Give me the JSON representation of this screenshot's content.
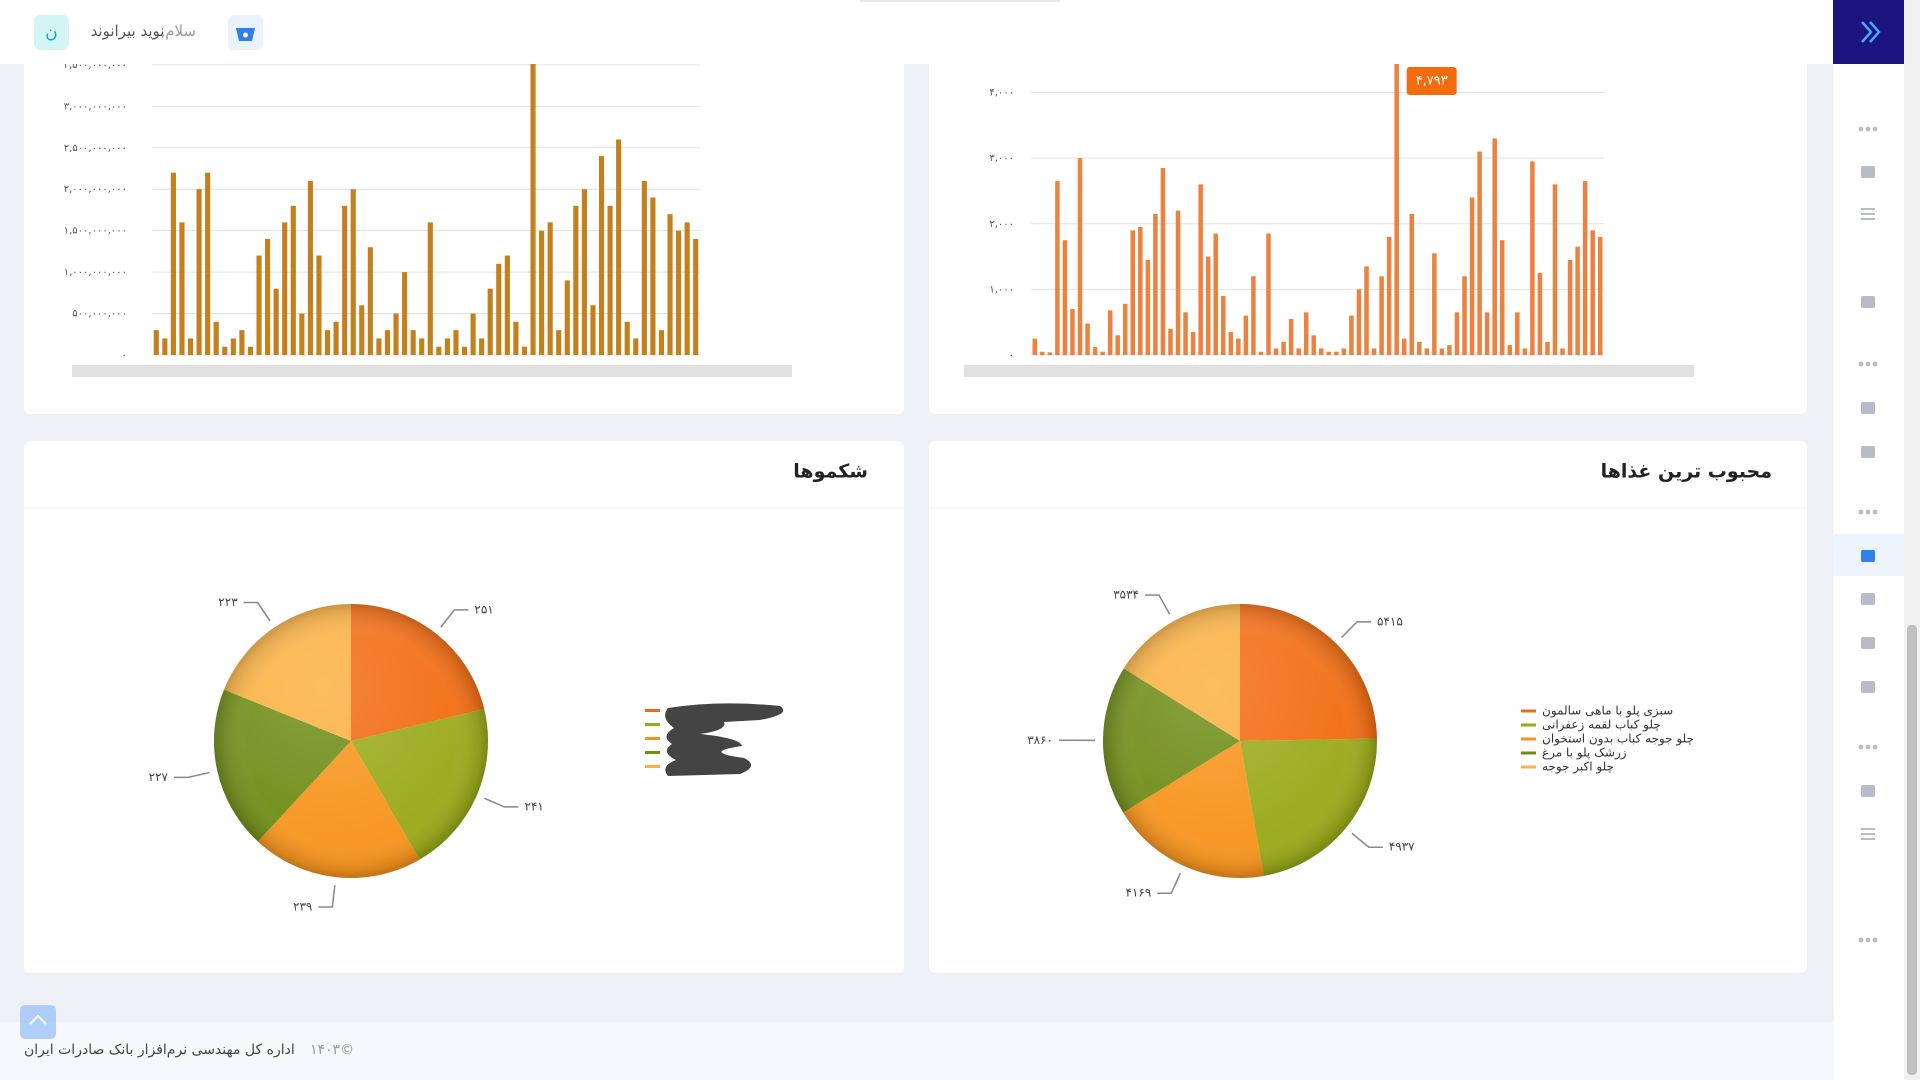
{
  "header": {
    "greeting": "سلام,",
    "user": "نوید بیرانوند",
    "avatar": "ن"
  },
  "chart_data": [
    {
      "type": "bar",
      "color": "#c4801c",
      "values": [
        300000000,
        200000000,
        2200000000,
        1600000000,
        200000000,
        2000000000,
        2200000000,
        400000000,
        100000000,
        200000000,
        300000000,
        100000000,
        1200000000,
        1400000000,
        800000000,
        1600000000,
        1800000000,
        500000000,
        2100000000,
        1200000000,
        300000000,
        400000000,
        1800000000,
        2000000000,
        600000000,
        1300000000,
        200000000,
        300000000,
        500000000,
        1000000000,
        300000000,
        200000000,
        1600000000,
        100000000,
        200000000,
        300000000,
        100000000,
        500000000,
        200000000,
        800000000,
        1100000000,
        1200000000,
        400000000,
        100000000,
        3700000000,
        1500000000,
        1600000000,
        300000000,
        900000000,
        1800000000,
        2000000000,
        600000000,
        2400000000,
        1800000000,
        2600000000,
        400000000,
        200000000,
        2100000000,
        1900000000,
        300000000,
        1700000000,
        1500000000,
        1600000000,
        1400000000
      ],
      "ylim": [
        0,
        3800000000
      ],
      "yticks": [
        {
          "value": 0,
          "label": "۰"
        },
        {
          "value": 500000000,
          "label": "۵۰۰,۰۰۰,۰۰۰"
        },
        {
          "value": 1000000000,
          "label": "۱,۰۰۰,۰۰۰,۰۰۰"
        },
        {
          "value": 1500000000,
          "label": "۱,۵۰۰,۰۰۰,۰۰۰"
        },
        {
          "value": 2000000000,
          "label": "۲,۰۰۰,۰۰۰,۰۰۰"
        },
        {
          "value": 2500000000,
          "label": "۲,۵۰۰,۰۰۰,۰۰۰"
        },
        {
          "value": 3000000000,
          "label": "۳,۰۰۰,۰۰۰,۰۰۰"
        },
        {
          "value": 3500000000,
          "label": "۳,۵۰۰,۰۰۰,۰۰۰"
        }
      ],
      "grid": true
    },
    {
      "type": "bar",
      "color": "#ec8240",
      "values": [
        250,
        50,
        40,
        2650,
        1750,
        700,
        3000,
        480,
        120,
        50,
        680,
        300,
        780,
        1900,
        1950,
        1450,
        2150,
        2850,
        400,
        2200,
        650,
        350,
        2600,
        1500,
        1850,
        900,
        350,
        250,
        600,
        1200,
        50,
        1850,
        100,
        200,
        550,
        100,
        650,
        300,
        100,
        50,
        50,
        100,
        600,
        1000,
        1350,
        100,
        1200,
        1800,
        4793,
        250,
        2150,
        200,
        100,
        1550,
        100,
        150,
        650,
        1200,
        2400,
        3100,
        650,
        3300,
        1750,
        150,
        650,
        100,
        2950,
        1250,
        200,
        2600,
        100,
        1450,
        1650,
        2650,
        1900,
        1800
      ],
      "ylim": [
        0,
        4800
      ],
      "yticks": [
        {
          "value": 0,
          "label": "۰"
        },
        {
          "value": 1000,
          "label": "۱,۰۰۰"
        },
        {
          "value": 2000,
          "label": "۲,۰۰۰"
        },
        {
          "value": 3000,
          "label": "۳,۰۰۰"
        },
        {
          "value": 4000,
          "label": "۴,۰۰۰"
        }
      ],
      "grid": true,
      "tooltip": "۴,۷۹۳"
    },
    {
      "type": "pie",
      "title": "شکموها",
      "values": [
        251,
        241,
        239,
        227,
        223
      ],
      "value_labels": [
        "۲۵۱",
        "۲۴۱",
        "۲۳۹",
        "۲۲۷",
        "۲۲۳"
      ],
      "colors": [
        "#f26b0f",
        "#9aaa1a",
        "#f7941d",
        "#6e8c16",
        "#fbb040"
      ]
    },
    {
      "type": "pie",
      "title": "محبوب ترین غذاها",
      "categories": [
        "سبزی پلو با ماهی سالمون",
        "چلو کباب لقمه زعفرانی",
        "چلو جوجه کباب بدون استخوان",
        "زرشک پلو با مرغ",
        "چلو اکبر جوجه"
      ],
      "values": [
        5415,
        4937,
        4169,
        3860,
        3534
      ],
      "value_labels": [
        "۵۴۱۵",
        "۴۹۳۷",
        "۴۱۶۹",
        "۳۸۶۰",
        "۳۵۳۴"
      ],
      "colors": [
        "#f26b0f",
        "#9aaa1a",
        "#f7941d",
        "#6e8c16",
        "#fbb040"
      ]
    }
  ],
  "footer": {
    "copyright": "©۱۴۰۳",
    "text": "اداره کل مهندسی نرم‌افزار بانک صادرات ایران"
  }
}
